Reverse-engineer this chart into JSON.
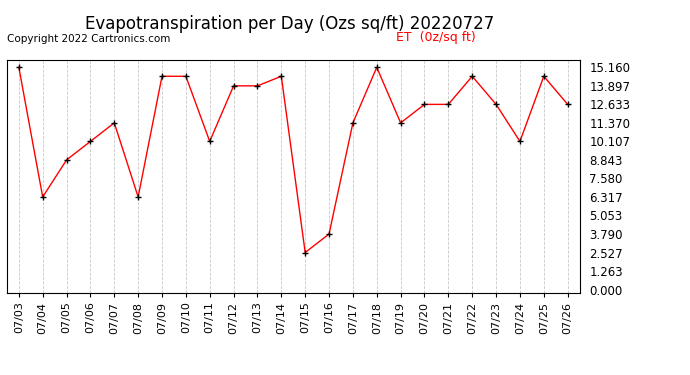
{
  "title": "Evapotranspiration per Day (Ozs sq/ft) 20220727",
  "copyright": "Copyright 2022 Cartronics.com",
  "legend_label": "ET  (0z/sq ft)",
  "dates": [
    "07/03",
    "07/04",
    "07/05",
    "07/06",
    "07/07",
    "07/08",
    "07/09",
    "07/10",
    "07/11",
    "07/12",
    "07/13",
    "07/14",
    "07/15",
    "07/16",
    "07/17",
    "07/18",
    "07/19",
    "07/20",
    "07/21",
    "07/22",
    "07/23",
    "07/24",
    "07/25",
    "07/26"
  ],
  "values": [
    15.16,
    6.317,
    8.843,
    10.107,
    11.37,
    6.317,
    14.55,
    14.55,
    10.107,
    13.897,
    13.897,
    14.55,
    2.527,
    3.79,
    11.37,
    15.16,
    11.37,
    12.633,
    12.633,
    14.55,
    12.633,
    10.107,
    14.55,
    12.633
  ],
  "yticks": [
    0.0,
    1.263,
    2.527,
    3.79,
    5.053,
    6.317,
    7.58,
    8.843,
    10.107,
    11.37,
    12.633,
    13.897,
    15.16
  ],
  "ymin": 0.0,
  "ymax": 15.16,
  "line_color": "red",
  "marker": "+",
  "marker_color": "black",
  "grid_color": "#c8c8c8",
  "bg_color": "white",
  "title_fontsize": 12,
  "copyright_fontsize": 7.5,
  "legend_color": "red",
  "legend_fontsize": 9,
  "tick_fontsize": 8,
  "ylabel_right_fontsize": 8.5
}
